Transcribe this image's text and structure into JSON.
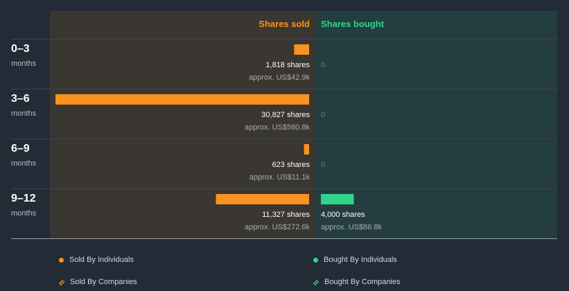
{
  "chart_data": {
    "type": "bar",
    "orientation": "horizontal-diverging",
    "columns": {
      "sold": "Shares sold",
      "bought": "Shares bought"
    },
    "colors": {
      "sold": "#f7931e",
      "bought": "#2fd58b",
      "sold_bg": "#3a3631",
      "bought_bg": "#243d40",
      "sold_header": "#f7931e",
      "bought_header": "#2fd58b"
    },
    "sold_max": 30827,
    "bought_max": 30827,
    "periods": [
      {
        "label": "0–3",
        "unit": "months",
        "sold": 1818,
        "sold_shares": "1,818 shares",
        "sold_approx": "approx. US$42.9k",
        "bought": 0,
        "bought_zero": "0"
      },
      {
        "label": "3–6",
        "unit": "months",
        "sold": 30827,
        "sold_shares": "30,827 shares",
        "sold_approx": "approx. US$580.8k",
        "bought": 0,
        "bought_zero": "0"
      },
      {
        "label": "6–9",
        "unit": "months",
        "sold": 623,
        "sold_shares": "623 shares",
        "sold_approx": "approx. US$11.1k",
        "bought": 0,
        "bought_zero": "0"
      },
      {
        "label": "9–12",
        "unit": "months",
        "sold": 11327,
        "sold_shares": "11,327 shares",
        "sold_approx": "approx. US$272.6k",
        "bought": 4000,
        "bought_shares": "4,000 shares",
        "bought_approx": "approx. US$86.8k"
      }
    ],
    "legend": [
      {
        "label": "Sold By Individuals",
        "kind": "dot",
        "color": "#f7931e"
      },
      {
        "label": "Bought By Individuals",
        "kind": "dot",
        "color": "#2fd58b"
      },
      {
        "label": "Sold By Companies",
        "kind": "hatch",
        "color": "#f7931e"
      },
      {
        "label": "Bought By Companies",
        "kind": "hatch",
        "color": "#2fd58b"
      }
    ]
  }
}
